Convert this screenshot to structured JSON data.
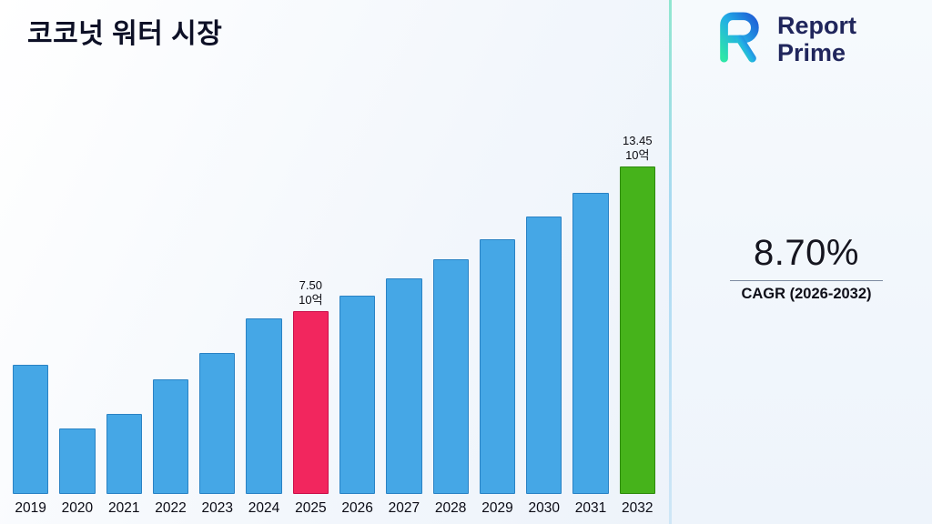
{
  "title": "코코넛 워터 시장",
  "logo": {
    "icon": "report-prime-logo",
    "name_line1": "Report",
    "name_line2": "Prime"
  },
  "stats": {
    "cagr_value": "8.70%",
    "cagr_label": "CAGR (2026-2032)"
  },
  "chart_data": {
    "type": "bar",
    "title": "코코넛 워터 시장",
    "categories": [
      "2019",
      "2020",
      "2021",
      "2022",
      "2023",
      "2024",
      "2025",
      "2026",
      "2027",
      "2028",
      "2029",
      "2030",
      "2031",
      "2032"
    ],
    "values": [
      5.3,
      2.7,
      3.3,
      4.7,
      5.8,
      7.2,
      7.5,
      8.15,
      8.86,
      9.63,
      10.47,
      11.38,
      12.37,
      13.45
    ],
    "unit": "10억",
    "ylim": [
      0,
      14
    ],
    "grid": false,
    "legend": false,
    "annotations": [
      {
        "category": "2025",
        "lines": [
          "7.50",
          "10억"
        ]
      },
      {
        "category": "2032",
        "lines": [
          "13.45",
          "10억"
        ]
      }
    ],
    "colors": {
      "default_fill": "#45a7e6",
      "default_stroke": "#2a82c4",
      "highlight_fill": "#f2265e",
      "highlight_stroke": "#c9104b",
      "final_fill": "#46b31b",
      "final_stroke": "#2f8a0e"
    },
    "special_bars": {
      "2025": "highlight",
      "2032": "final"
    }
  }
}
